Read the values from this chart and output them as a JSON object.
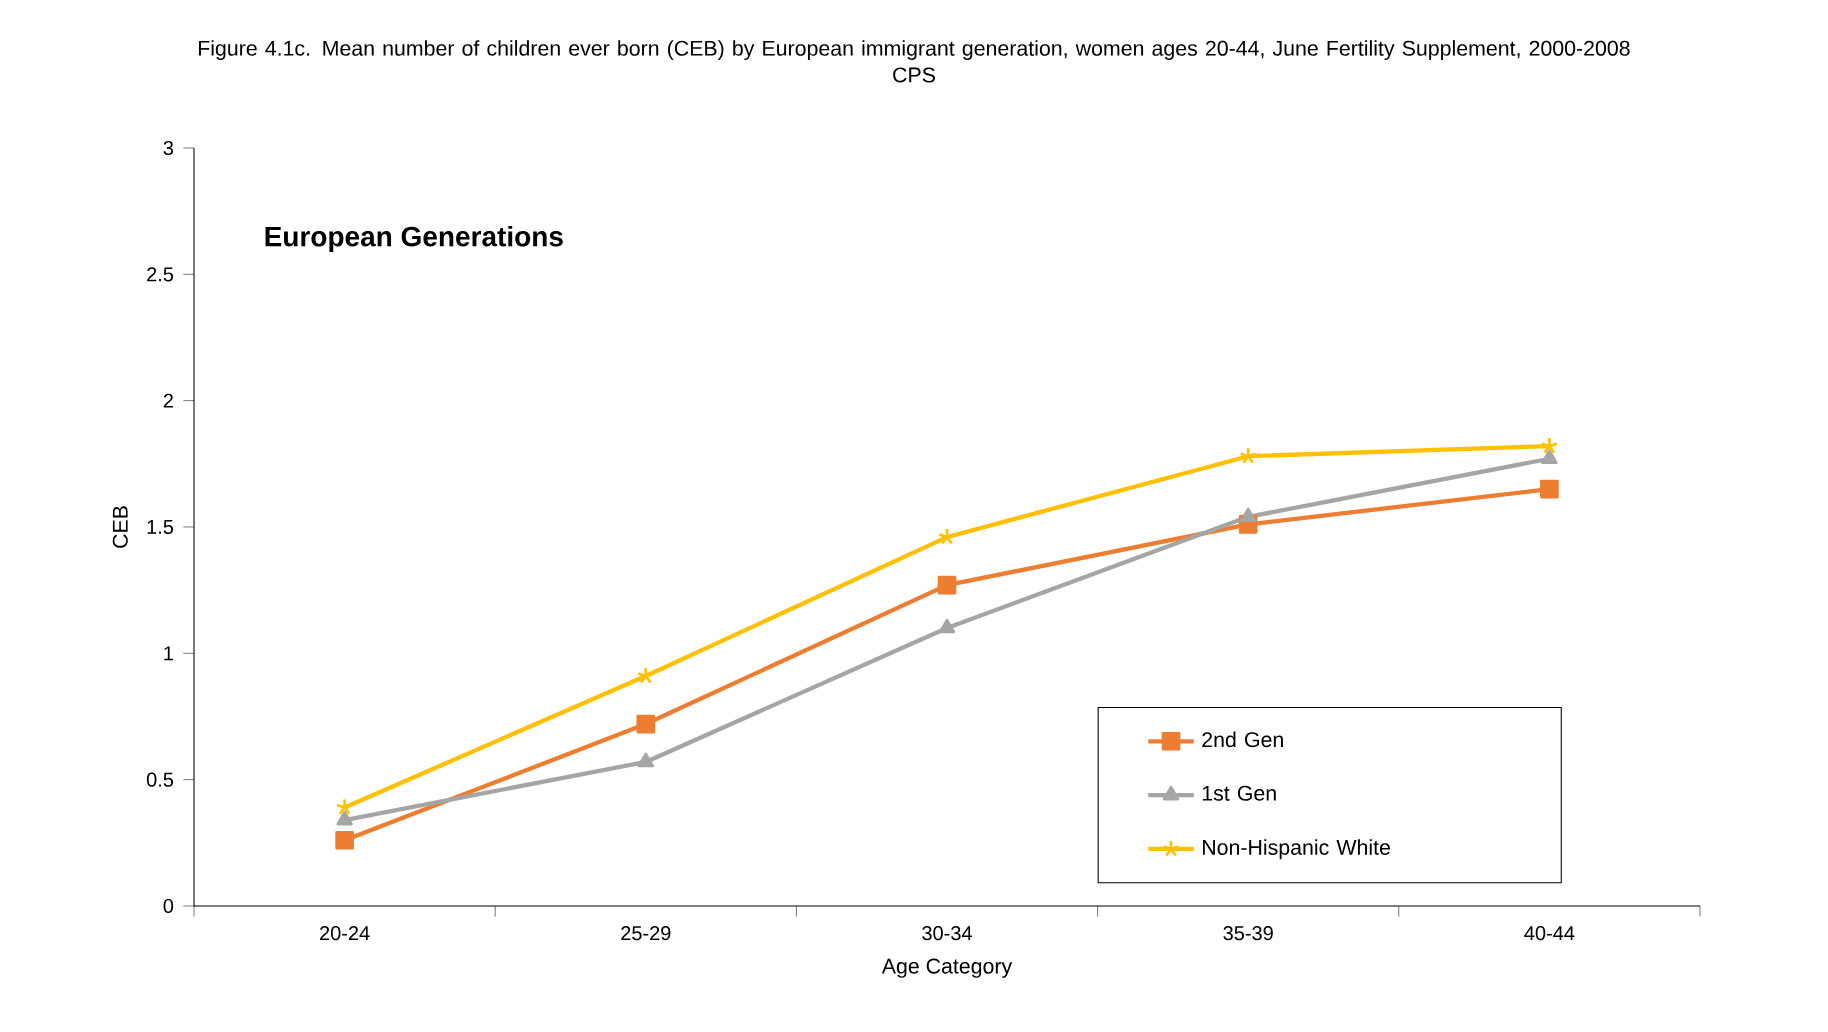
{
  "chart_data": {
    "type": "line",
    "title": "Figure 4.1c. Mean number of children ever born (CEB) by European immigrant generation, women ages 20-44, June Fertility Supplement, 2000-2008 CPS",
    "xlabel": "Age Category",
    "ylabel": "CEB",
    "annotations": [
      "European Generations"
    ],
    "categories": [
      "20-24",
      "25-29",
      "30-34",
      "35-39",
      "40-44"
    ],
    "series": [
      {
        "name": "2nd Gen",
        "color": "#ed7d31",
        "marker": "square",
        "values": [
          0.26,
          0.72,
          1.27,
          1.51,
          1.65
        ]
      },
      {
        "name": "1st Gen",
        "color": "#a5a5a5",
        "marker": "triangle",
        "values": [
          0.34,
          0.57,
          1.1,
          1.54,
          1.77
        ]
      },
      {
        "name": "Non-Hispanic White",
        "color": "#ffc000",
        "marker": "cross",
        "values": [
          0.39,
          0.91,
          1.46,
          1.78,
          1.82
        ]
      }
    ],
    "ylim": [
      0,
      3
    ],
    "yticks": [
      0,
      0.5,
      1,
      1.5,
      2,
      2.5,
      3
    ],
    "grid": false,
    "legend": "bottom right",
    "line_style": "solid"
  }
}
